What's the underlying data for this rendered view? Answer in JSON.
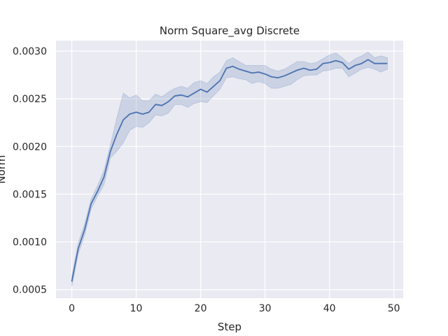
{
  "chart_data": {
    "type": "line",
    "title": "Norm Square_avg Discrete",
    "xlabel": "Step",
    "ylabel": "Norm",
    "xlim": [
      -2.45,
      51.45
    ],
    "ylim": [
      0.00041,
      0.00311
    ],
    "x_ticks": [
      0,
      10,
      20,
      30,
      40,
      50
    ],
    "x_tick_labels": [
      "0",
      "10",
      "20",
      "30",
      "40",
      "50"
    ],
    "y_ticks": [
      0.0005,
      0.001,
      0.0015,
      0.002,
      0.0025,
      0.003
    ],
    "y_tick_labels": [
      "0.0005",
      "0.0010",
      "0.0015",
      "0.0020",
      "0.0025",
      "0.0030"
    ],
    "grid": true,
    "background": "#eaeaf2",
    "line_color": "#4c72b0",
    "band_color": "#4c72b0",
    "series": [
      {
        "x": [
          0,
          1,
          2,
          3,
          4,
          5,
          6,
          7,
          8,
          9,
          10,
          11,
          12,
          13,
          14,
          15,
          16,
          17,
          18,
          19,
          20,
          21,
          22,
          23,
          24,
          25,
          26,
          27,
          28,
          29,
          30,
          31,
          32,
          33,
          34,
          35,
          36,
          37,
          38,
          39,
          40,
          41,
          42,
          43,
          44,
          45,
          46,
          47,
          48,
          49
        ],
        "values": [
          0.000585,
          0.00093,
          0.00113,
          0.0014,
          0.00153,
          0.00168,
          0.00195,
          0.00213,
          0.00228,
          0.00234,
          0.00236,
          0.00234,
          0.00236,
          0.00244,
          0.00243,
          0.00247,
          0.00253,
          0.00254,
          0.00252,
          0.00256,
          0.0026,
          0.00257,
          0.00263,
          0.00269,
          0.00282,
          0.00284,
          0.00281,
          0.00279,
          0.00277,
          0.00278,
          0.00276,
          0.00273,
          0.00272,
          0.00274,
          0.00277,
          0.0028,
          0.00282,
          0.0028,
          0.00281,
          0.00287,
          0.00288,
          0.0029,
          0.00288,
          0.00281,
          0.00285,
          0.00287,
          0.00291,
          0.00287,
          0.00287,
          0.00287
        ],
        "ci_lower": [
          0.00053,
          0.00087,
          0.00107,
          0.00134,
          0.00148,
          0.0016,
          0.00188,
          0.00195,
          0.00204,
          0.00217,
          0.00221,
          0.0022,
          0.00225,
          0.00233,
          0.00232,
          0.00235,
          0.00244,
          0.00244,
          0.00241,
          0.00245,
          0.00247,
          0.00246,
          0.00253,
          0.0026,
          0.00272,
          0.00273,
          0.00271,
          0.0027,
          0.00266,
          0.00268,
          0.00266,
          0.00261,
          0.00261,
          0.00263,
          0.00265,
          0.0027,
          0.00274,
          0.00275,
          0.00275,
          0.00279,
          0.0028,
          0.00282,
          0.00282,
          0.00273,
          0.00277,
          0.00281,
          0.00283,
          0.00281,
          0.00278,
          0.00281
        ],
        "ci_upper": [
          0.00064,
          0.00099,
          0.00119,
          0.00145,
          0.00159,
          0.00175,
          0.00202,
          0.0023,
          0.00256,
          0.00251,
          0.00254,
          0.00248,
          0.00248,
          0.00255,
          0.00252,
          0.00257,
          0.00261,
          0.00263,
          0.00261,
          0.00267,
          0.00269,
          0.00266,
          0.00273,
          0.00278,
          0.0029,
          0.00293,
          0.00289,
          0.00285,
          0.00285,
          0.00285,
          0.00285,
          0.00281,
          0.00279,
          0.00281,
          0.00285,
          0.00289,
          0.00289,
          0.00287,
          0.00288,
          0.00292,
          0.00296,
          0.00298,
          0.00293,
          0.00287,
          0.00292,
          0.00295,
          0.00299,
          0.00293,
          0.00295,
          0.00293
        ]
      }
    ]
  }
}
